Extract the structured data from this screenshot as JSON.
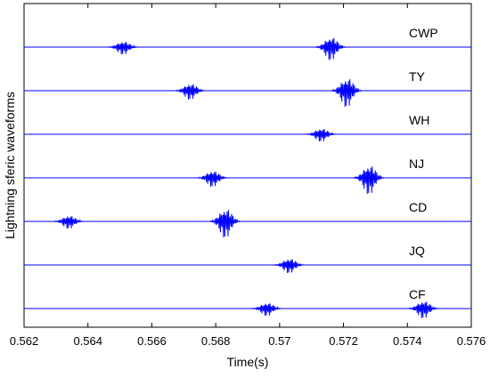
{
  "chart_data": {
    "type": "line",
    "title": "",
    "xlabel": "Time(s)",
    "ylabel": "Lightning sferic waveforms",
    "xlim": [
      0.562,
      0.576
    ],
    "xticks": [
      0.562,
      0.564,
      0.566,
      0.568,
      0.57,
      0.572,
      0.574,
      0.576
    ],
    "xtick_labels": [
      "0.562",
      "0.564",
      "0.566",
      "0.568",
      "0.57",
      "0.572",
      "0.574",
      "0.576"
    ],
    "grid": false,
    "legend": "none",
    "line_color": "#0000ff",
    "series": [
      {
        "name": "CWP",
        "bursts": [
          {
            "t": 0.5651,
            "amp": 0.45
          },
          {
            "t": 0.5716,
            "amp": 0.8
          }
        ]
      },
      {
        "name": "TY",
        "bursts": [
          {
            "t": 0.5672,
            "amp": 0.55
          },
          {
            "t": 0.5721,
            "amp": 1.0
          }
        ]
      },
      {
        "name": "WH",
        "bursts": [
          {
            "t": 0.5713,
            "amp": 0.45
          }
        ]
      },
      {
        "name": "NJ",
        "bursts": [
          {
            "t": 0.5679,
            "amp": 0.55
          },
          {
            "t": 0.5728,
            "amp": 1.0
          }
        ]
      },
      {
        "name": "CD",
        "bursts": [
          {
            "t": 0.5634,
            "amp": 0.45
          },
          {
            "t": 0.5683,
            "amp": 1.0
          }
        ]
      },
      {
        "name": "JQ",
        "bursts": [
          {
            "t": 0.5703,
            "amp": 0.5
          }
        ]
      },
      {
        "name": "CF",
        "bursts": [
          {
            "t": 0.5696,
            "amp": 0.45
          },
          {
            "t": 0.5745,
            "amp": 0.6
          }
        ]
      }
    ]
  }
}
